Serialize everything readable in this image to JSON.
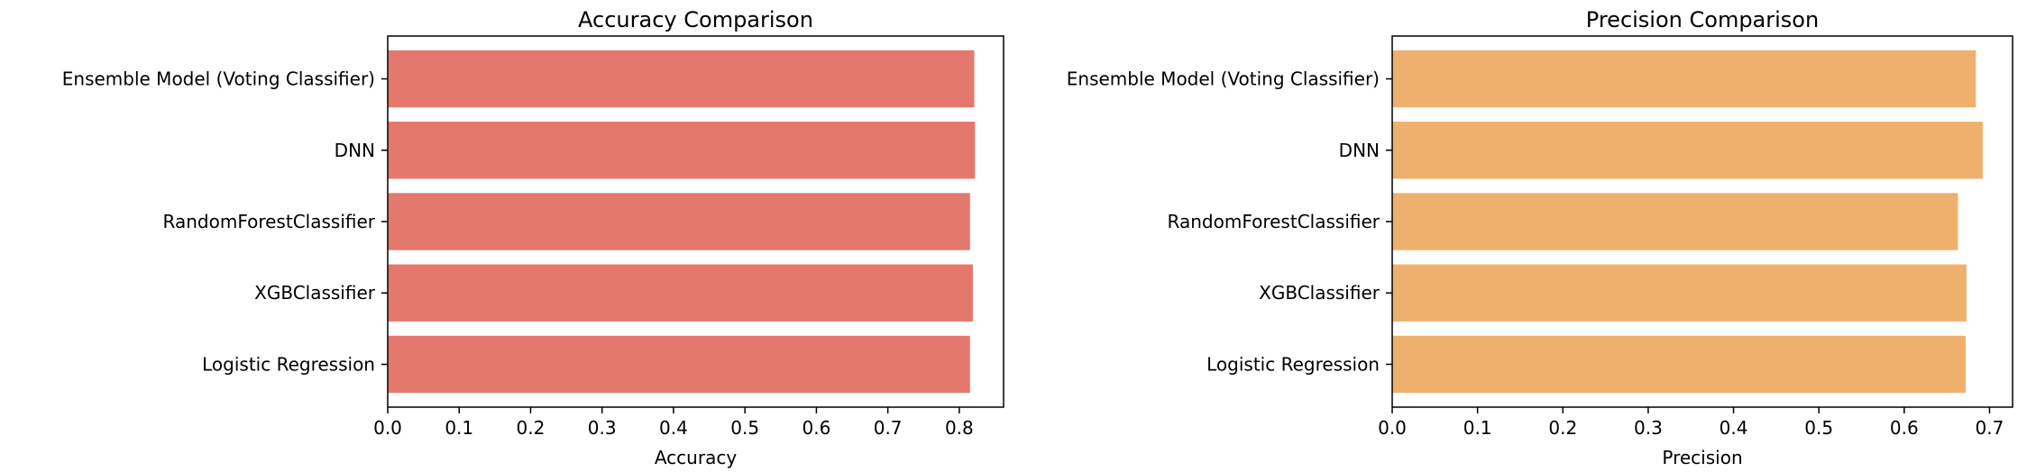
{
  "chart_data": [
    {
      "type": "bar",
      "orientation": "horizontal",
      "title": "Accuracy Comparison",
      "xlabel": "Accuracy",
      "ylabel": "",
      "categories": [
        "Ensemble Model (Voting Classifier)",
        "DNN",
        "RandomForestClassifier",
        "XGBClassifier",
        "Logistic Regression"
      ],
      "values": [
        0.821,
        0.822,
        0.815,
        0.819,
        0.815
      ],
      "xlim": [
        0,
        0.862
      ],
      "xticks": [
        "0.0",
        "0.1",
        "0.2",
        "0.3",
        "0.4",
        "0.5",
        "0.6",
        "0.7",
        "0.8"
      ],
      "color": "#e5786d",
      "grid": false
    },
    {
      "type": "bar",
      "orientation": "horizontal",
      "title": "Precision Comparison",
      "xlabel": "Precision",
      "ylabel": "",
      "categories": [
        "Ensemble Model (Voting Classifier)",
        "DNN",
        "RandomForestClassifier",
        "XGBClassifier",
        "Logistic Regression"
      ],
      "values": [
        0.684,
        0.692,
        0.663,
        0.673,
        0.672
      ],
      "xlim": [
        0,
        0.727
      ],
      "xticks": [
        "0.0",
        "0.1",
        "0.2",
        "0.3",
        "0.4",
        "0.5",
        "0.6",
        "0.7"
      ],
      "color": "#efb06d",
      "grid": false
    }
  ]
}
